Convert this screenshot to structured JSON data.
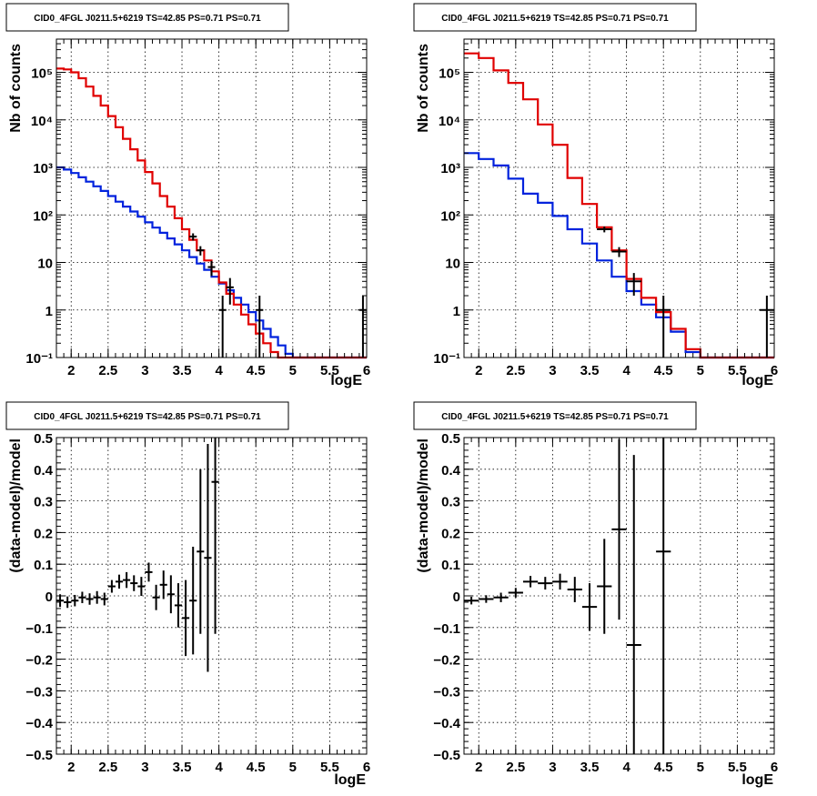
{
  "colors": {
    "data": "#000000",
    "model_total": "#e00000",
    "model_source": "#0022dd",
    "background": "#ffffff"
  },
  "chart_data": [
    {
      "id": "top-left",
      "type": "line",
      "title": "CID0_4FGL J0211.5+6219 TS=42.85 PS=0.71 PS=0.71",
      "xlabel": "logE",
      "ylabel": "Nb of counts",
      "xlim": [
        1.8,
        6.0
      ],
      "ylim": [
        0.1,
        500000
      ],
      "log_y": true,
      "grid": true,
      "xticks": [
        "2",
        "2.5",
        "3",
        "3.5",
        "4",
        "4.5",
        "5",
        "5.5",
        "6"
      ],
      "yticks": [
        "10⁻¹",
        "1",
        "10",
        "10²",
        "10³",
        "10⁴",
        "10⁵"
      ],
      "bin_edges": [
        1.8,
        1.9,
        2.0,
        2.1,
        2.2,
        2.3,
        2.4,
        2.5,
        2.6,
        2.7,
        2.8,
        2.9,
        3.0,
        3.1,
        3.2,
        3.3,
        3.4,
        3.5,
        3.6,
        3.7,
        3.8,
        3.9,
        4.0,
        4.1,
        4.2,
        4.3,
        4.4,
        4.5,
        4.6,
        4.7,
        4.8,
        4.9,
        5.0,
        5.1,
        5.2,
        5.3,
        5.4,
        5.5,
        5.6,
        5.7,
        5.8,
        5.9,
        6.0
      ],
      "series": [
        {
          "role": "model_total",
          "values": [
            120000,
            115000,
            100000,
            75000,
            50000,
            32000,
            20000,
            12000,
            7000,
            4000,
            2400,
            1400,
            800,
            460,
            250,
            150,
            85,
            50,
            30,
            18,
            11,
            6.5,
            3.8,
            2.2,
            1.3,
            0.8,
            0.5,
            0.32,
            0.2,
            0.13,
            0.1,
            0.1,
            0.1,
            0.1,
            0.1,
            0.1,
            0.1,
            0.1,
            0.1,
            0.1,
            0.1,
            0.1
          ]
        },
        {
          "role": "model_source",
          "values": [
            1000,
            900,
            760,
            620,
            500,
            400,
            320,
            250,
            190,
            150,
            118,
            92,
            70,
            54,
            42,
            32,
            24,
            18,
            13,
            9.5,
            7,
            5,
            3.6,
            2.6,
            1.8,
            1.3,
            0.9,
            0.6,
            0.4,
            0.27,
            0.18,
            0.12,
            0.1,
            0.1,
            0.1,
            0.1,
            0.1,
            0.1,
            0.1,
            0.1,
            0.1,
            0.1
          ]
        },
        {
          "role": "data",
          "points": [
            [
              3.65,
              35,
              6
            ],
            [
              3.75,
              18,
              4
            ],
            [
              3.9,
              8,
              2.8
            ],
            [
              4.05,
              1,
              1
            ],
            [
              4.15,
              3,
              1.7
            ],
            [
              4.55,
              1,
              1
            ],
            [
              5.95,
              1,
              1
            ]
          ]
        }
      ]
    },
    {
      "id": "top-right",
      "type": "line",
      "title": "CID0_4FGL J0211.5+6219 TS=42.85 PS=0.71 PS=0.71",
      "xlabel": "logE",
      "ylabel": "Nb of counts",
      "xlim": [
        1.8,
        6.0
      ],
      "ylim": [
        0.1,
        500000
      ],
      "log_y": true,
      "grid": true,
      "xticks": [
        "2",
        "2.5",
        "3",
        "3.5",
        "4",
        "4.5",
        "5",
        "5.5",
        "6"
      ],
      "yticks": [
        "10⁻¹",
        "1",
        "10",
        "10²",
        "10³",
        "10⁴",
        "10⁵"
      ],
      "bin_edges": [
        1.8,
        2.0,
        2.2,
        2.4,
        2.6,
        2.8,
        3.0,
        3.2,
        3.4,
        3.6,
        3.8,
        4.0,
        4.2,
        4.4,
        4.6,
        4.8,
        5.0,
        5.2,
        5.4,
        5.6,
        5.8,
        6.0
      ],
      "series": [
        {
          "role": "model_total",
          "values": [
            250000,
            200000,
            110000,
            60000,
            27000,
            8000,
            3000,
            600,
            170,
            55,
            18,
            4.5,
            1.8,
            0.9,
            0.4,
            0.15,
            0.1,
            0.1,
            0.1,
            0.1,
            0.1
          ]
        },
        {
          "role": "model_source",
          "values": [
            2000,
            1500,
            1100,
            580,
            280,
            180,
            95,
            50,
            25,
            11,
            5,
            2.5,
            1.3,
            0.7,
            0.35,
            0.13,
            0.1,
            0.1,
            0.1,
            0.1,
            0.1
          ]
        },
        {
          "role": "data",
          "points": [
            [
              3.7,
              50,
              7
            ],
            [
              3.9,
              17,
              4
            ],
            [
              4.1,
              4,
              2
            ],
            [
              4.5,
              1,
              1
            ],
            [
              5.9,
              1,
              1
            ]
          ]
        }
      ]
    },
    {
      "id": "bottom-left",
      "type": "scatter",
      "title": "CID0_4FGL J0211.5+6219 TS=42.85 PS=0.71 PS=0.71",
      "xlabel": "logE",
      "ylabel": "(data-model)/model",
      "xlim": [
        1.8,
        6.0
      ],
      "ylim": [
        -0.5,
        0.5
      ],
      "log_y": false,
      "grid": true,
      "xticks": [
        "2",
        "2.5",
        "3",
        "3.5",
        "4",
        "4.5",
        "5",
        "5.5",
        "6"
      ],
      "yticks": [
        "−0.5",
        "−0.4",
        "−0.3",
        "−0.2",
        "−0.1",
        "0",
        "0.1",
        "0.2",
        "0.3",
        "0.4",
        "0.5"
      ],
      "xerr": 0.05,
      "points": [
        [
          1.85,
          -0.015,
          0.02
        ],
        [
          1.95,
          -0.02,
          0.018
        ],
        [
          2.05,
          -0.015,
          0.018
        ],
        [
          2.15,
          -0.005,
          0.018
        ],
        [
          2.25,
          -0.01,
          0.018
        ],
        [
          2.35,
          -0.005,
          0.02
        ],
        [
          2.45,
          -0.01,
          0.02
        ],
        [
          2.55,
          0.03,
          0.02
        ],
        [
          2.65,
          0.045,
          0.022
        ],
        [
          2.75,
          0.05,
          0.025
        ],
        [
          2.85,
          0.04,
          0.025
        ],
        [
          2.95,
          0.03,
          0.03
        ],
        [
          3.05,
          0.075,
          0.03
        ],
        [
          3.15,
          -0.005,
          0.04
        ],
        [
          3.25,
          0.035,
          0.045
        ],
        [
          3.35,
          0.005,
          0.06
        ],
        [
          3.45,
          -0.03,
          0.07
        ],
        [
          3.55,
          -0.07,
          0.12
        ],
        [
          3.65,
          -0.015,
          0.17
        ],
        [
          3.75,
          0.14,
          0.26
        ],
        [
          3.85,
          0.12,
          0.36
        ],
        [
          3.95,
          0.36,
          0.48
        ]
      ]
    },
    {
      "id": "bottom-right",
      "type": "scatter",
      "title": "CID0_4FGL J0211.5+6219 TS=42.85 PS=0.71 PS=0.71",
      "xlabel": "logE",
      "ylabel": "(data-model)/model",
      "xlim": [
        1.8,
        6.0
      ],
      "ylim": [
        -0.5,
        0.5
      ],
      "log_y": false,
      "grid": true,
      "xticks": [
        "2",
        "2.5",
        "3",
        "3.5",
        "4",
        "4.5",
        "5",
        "5.5",
        "6"
      ],
      "yticks": [
        "−0.5",
        "−0.4",
        "−0.3",
        "−0.2",
        "−0.1",
        "0",
        "0.1",
        "0.2",
        "0.3",
        "0.4",
        "0.5"
      ],
      "xerr": 0.1,
      "points": [
        [
          1.9,
          -0.015,
          0.012
        ],
        [
          2.1,
          -0.01,
          0.012
        ],
        [
          2.3,
          -0.005,
          0.015
        ],
        [
          2.5,
          0.01,
          0.015
        ],
        [
          2.7,
          0.045,
          0.018
        ],
        [
          2.9,
          0.04,
          0.02
        ],
        [
          3.1,
          0.045,
          0.025
        ],
        [
          3.3,
          0.02,
          0.04
        ],
        [
          3.5,
          -0.035,
          0.075
        ],
        [
          3.7,
          0.03,
          0.15
        ],
        [
          3.9,
          0.21,
          0.285
        ],
        [
          4.1,
          -0.155,
          0.6
        ],
        [
          4.5,
          0.14,
          0.9
        ]
      ]
    }
  ]
}
